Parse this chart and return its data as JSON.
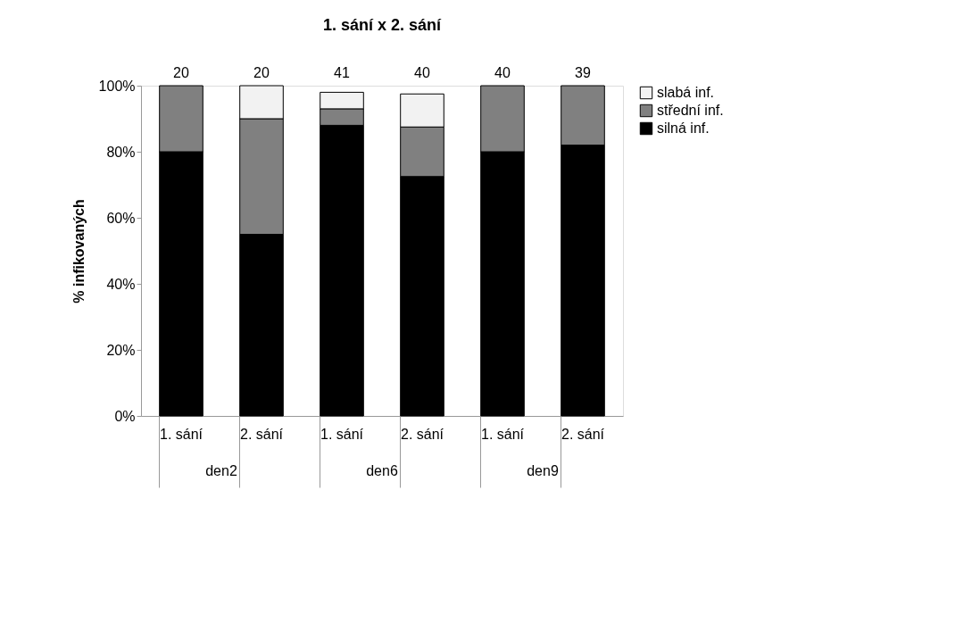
{
  "chart_data": {
    "type": "bar",
    "title": "1. sání x 2. sání",
    "ylabel": "% infikovaných",
    "categories": [
      "1. sání",
      "2. sání",
      "1. sání",
      "2. sání",
      "1. sání",
      "2. sání"
    ],
    "stacked": true,
    "series": [
      {
        "name": "silná inf.",
        "color": "#000000",
        "values": [
          80,
          55,
          88,
          72.5,
          80,
          82
        ]
      },
      {
        "name": "střední inf.",
        "color": "#808080",
        "values": [
          20,
          35,
          5,
          15,
          20,
          18
        ]
      },
      {
        "name": "slabá inf.",
        "color": "#f2f2f2",
        "values": [
          null,
          10,
          5,
          10,
          null,
          null
        ]
      }
    ],
    "annotations": [
      "20",
      "20",
      "41",
      "40",
      "40",
      "39",
      "den2",
      "den6",
      "den9"
    ],
    "ylim": [
      0,
      100
    ],
    "yticks": [
      {
        "value": 0,
        "label": "0%"
      },
      {
        "value": 20,
        "label": "20%"
      },
      {
        "value": 40,
        "label": "40%"
      },
      {
        "value": 60,
        "label": "60%"
      },
      {
        "value": 80,
        "label": "80%"
      },
      {
        "value": 100,
        "label": "100%"
      }
    ],
    "grid": false,
    "legend": "right"
  }
}
